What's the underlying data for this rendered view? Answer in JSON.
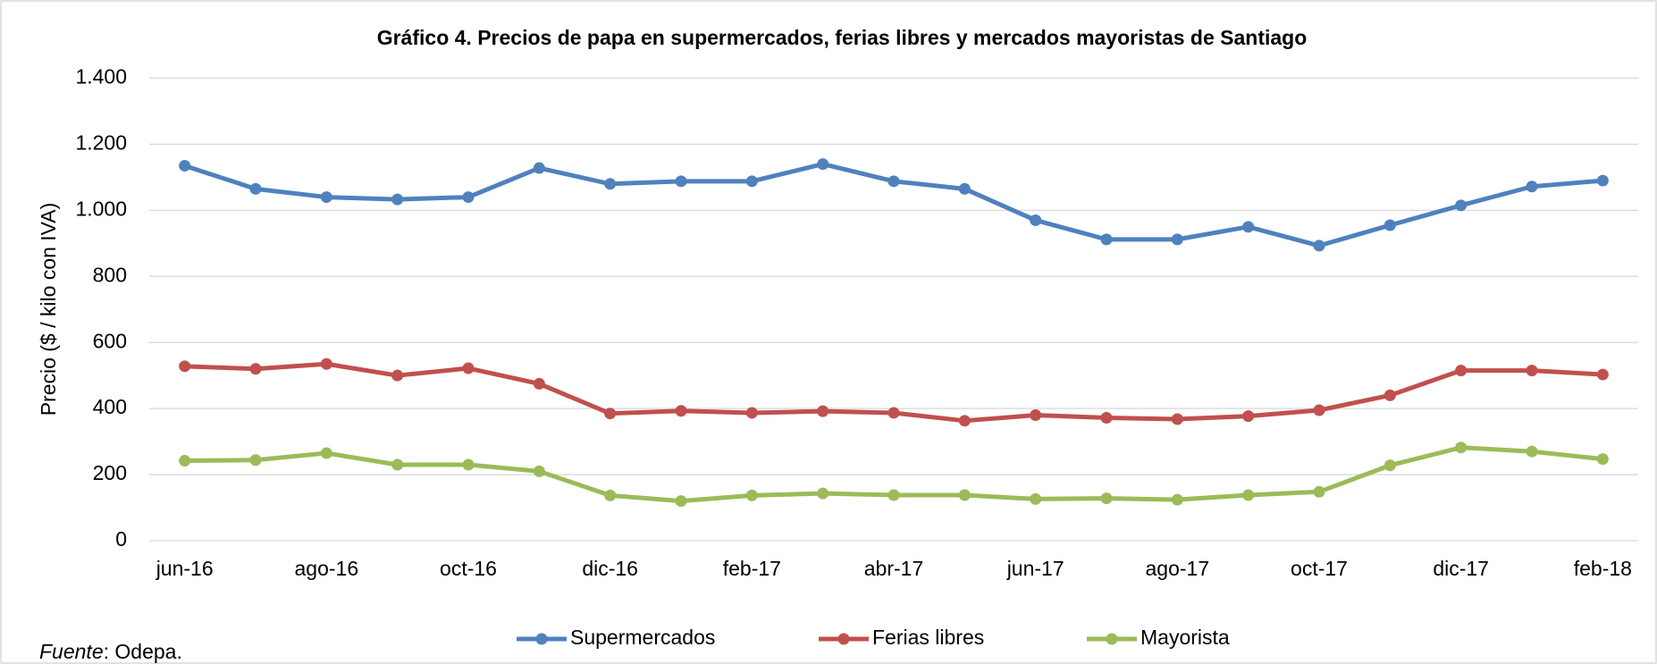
{
  "chart_data": {
    "type": "line",
    "title": "Gráfico 4. Precios de papa en supermercados, ferias libres y mercados mayoristas de Santiago",
    "y_label": "Precio ($ / kilo con IVA)",
    "categories": [
      "jun-16",
      null,
      "ago-16",
      null,
      "oct-16",
      null,
      "dic-16",
      null,
      "feb-17",
      null,
      "abr-17",
      null,
      "jun-17",
      null,
      "ago-17",
      null,
      "oct-17",
      null,
      "dic-17",
      null,
      "feb-18"
    ],
    "series": [
      {
        "name": "Supermercados",
        "color": "#4f81bd",
        "values": [
          1135,
          1065,
          1040,
          1033,
          1040,
          1128,
          1080,
          1088,
          1088,
          1140,
          1088,
          1065,
          970,
          912,
          912,
          950,
          893,
          955,
          1015,
          1072,
          1090
        ]
      },
      {
        "name": "Ferias libres",
        "color": "#c0504d",
        "values": [
          528,
          520,
          535,
          500,
          522,
          475,
          385,
          393,
          387,
          392,
          387,
          363,
          380,
          372,
          368,
          377,
          395,
          440,
          515,
          515,
          503
        ]
      },
      {
        "name": "Mayorista",
        "color": "#9bbb59",
        "values": [
          242,
          244,
          265,
          230,
          230,
          210,
          137,
          120,
          137,
          143,
          138,
          138,
          126,
          128,
          124,
          138,
          148,
          228,
          282,
          270,
          247
        ]
      }
    ],
    "ylim": [
      0,
      1400
    ],
    "yticks": [
      0,
      200,
      400,
      600,
      800,
      {
        "value": 1000,
        "label": "1.000"
      },
      {
        "value": 1200,
        "label": "1.200"
      },
      {
        "value": 1400,
        "label": "1.400"
      }
    ],
    "grid": true,
    "legend": "bottom",
    "source": {
      "label": "Fuente",
      "text": ": Odepa."
    }
  }
}
